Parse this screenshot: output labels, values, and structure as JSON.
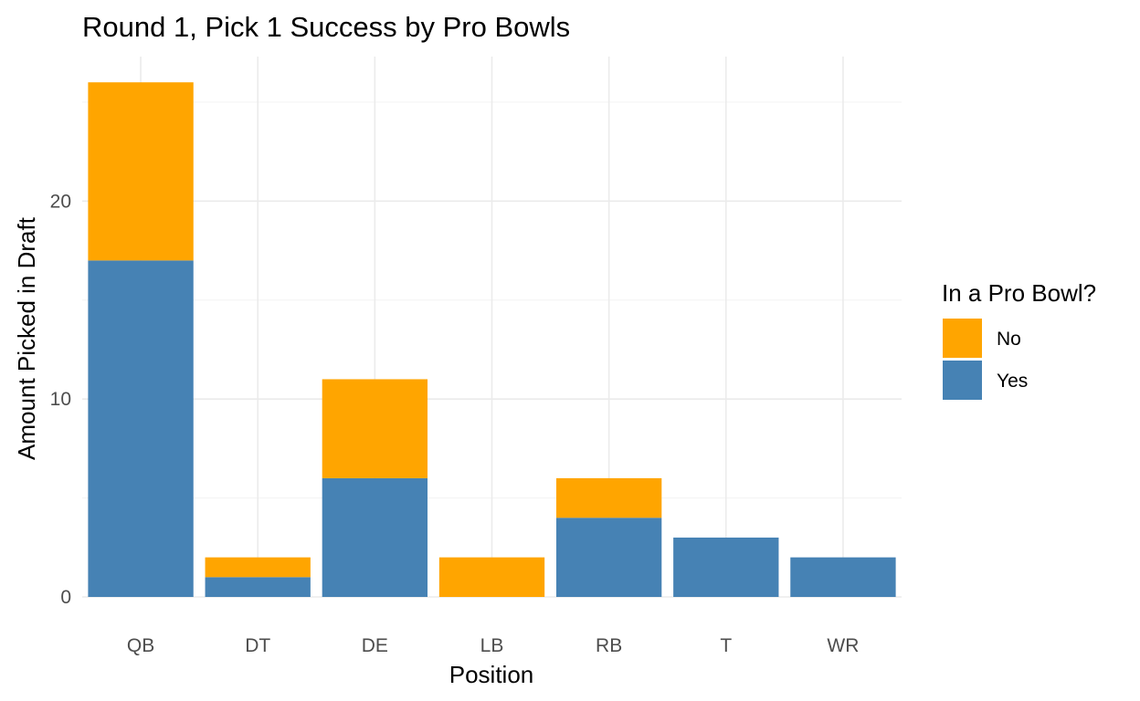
{
  "chart_data": {
    "type": "bar",
    "stacked": true,
    "title": "Round 1, Pick 1 Success by Pro Bowls",
    "xlabel": "Position",
    "ylabel": "Amount Picked in Draft",
    "categories": [
      "QB",
      "DT",
      "DE",
      "LB",
      "RB",
      "T",
      "WR"
    ],
    "series": [
      {
        "name": "Yes",
        "color": "#4682B4",
        "values": [
          17,
          1,
          6,
          0,
          4,
          3,
          2
        ]
      },
      {
        "name": "No",
        "color": "#FFA500",
        "values": [
          9,
          1,
          5,
          2,
          2,
          0,
          0
        ]
      }
    ],
    "stack_order_bottom_to_top": [
      "Yes",
      "No"
    ],
    "ylim": [
      0,
      27.3
    ],
    "yticks": [
      0,
      10,
      20
    ],
    "y_minor_ticks": [
      5,
      15,
      25
    ],
    "grid": true,
    "legend": {
      "title": "In a Pro Bowl?",
      "placement": "right",
      "entries": [
        {
          "label": "No",
          "color": "#FFA500"
        },
        {
          "label": "Yes",
          "color": "#4682B4"
        }
      ]
    }
  }
}
